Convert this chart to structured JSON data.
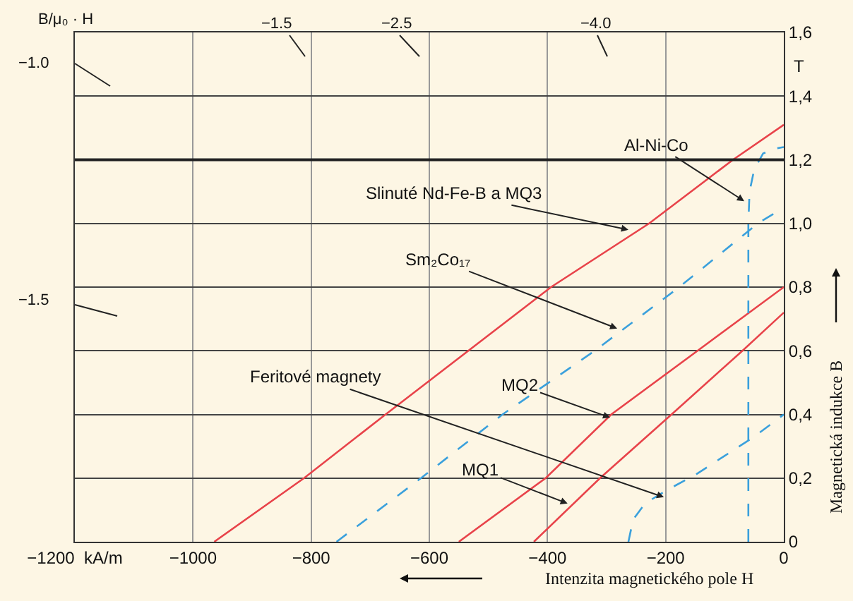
{
  "chart_data": {
    "type": "line",
    "xlabel": "Intenzita magnetického pole H",
    "ylabel": "Magnetická indukce B",
    "xlim": [
      -1200,
      0
    ],
    "xticks": [
      {
        "value": -1200,
        "label": "−1200  kA/m"
      },
      {
        "value": -1000,
        "label": "−1000"
      },
      {
        "value": -800,
        "label": "−800"
      },
      {
        "value": -600,
        "label": "−600"
      },
      {
        "value": -400,
        "label": "−400"
      },
      {
        "value": -200,
        "label": "−200"
      },
      0
    ],
    "ylim": [
      0,
      1.6
    ],
    "yticks": [
      0,
      {
        "value": 0.2,
        "label": "0,2"
      },
      {
        "value": 0.4,
        "label": "0,4"
      },
      {
        "value": 0.6,
        "label": "0,6"
      },
      {
        "value": 0.8,
        "label": "0,8"
      },
      {
        "value": 1.0,
        "label": "1,0"
      },
      {
        "value": 1.2,
        "label": "1,2"
      },
      {
        "value": 1.4,
        "label": "1,4"
      },
      {
        "value": 1.6,
        "label": "1,6"
      }
    ],
    "grid": true,
    "marker": "none",
    "ref_lines": [
      {
        "axis": "y",
        "value": 1.2,
        "color": "#222222"
      }
    ],
    "series": [
      {
        "color": "#e8434a",
        "line_style": "solid",
        "x": [
          -964,
          -812,
          -674,
          -394,
          -228,
          -86,
          0
        ],
        "values": [
          0,
          0.2,
          0.4,
          0.8,
          1.0,
          1.2,
          1.31
        ]
      },
      {
        "color": "#3aa0dc",
        "line_style": "dashed",
        "x": [
          -757,
          -614,
          -476,
          -320,
          -177,
          -44,
          0
        ],
        "values": [
          0,
          0.2,
          0.4,
          0.6,
          0.8,
          1.0,
          1.05
        ]
      },
      {
        "color": "#e8434a",
        "line_style": "solid",
        "x": [
          -550,
          -403,
          -292,
          -146,
          0
        ],
        "values": [
          0,
          0.2,
          0.4,
          0.6,
          0.8
        ]
      },
      {
        "color": "#e8434a",
        "line_style": "solid",
        "x": [
          -423,
          -311,
          -190,
          -70,
          0
        ],
        "values": [
          0,
          0.2,
          0.4,
          0.6,
          0.72
        ]
      },
      {
        "color": "#3aa0dc",
        "line_style": "dashed",
        "x": [
          -263,
          -255,
          -235,
          -200,
          -150,
          -100,
          -50,
          0
        ],
        "values": [
          0,
          0.07,
          0.12,
          0.16,
          0.21,
          0.27,
          0.33,
          0.4
        ]
      },
      {
        "color": "#3aa0dc",
        "line_style": "dashed",
        "x": [
          -60,
          -60,
          -58,
          -50,
          -35,
          -15,
          0
        ],
        "values": [
          0,
          1.0,
          1.1,
          1.17,
          1.22,
          1.235,
          1.24
        ]
      }
    ],
    "annotations": [
      {
        "text": "Al-Ni-Co",
        "x": -67,
        "y": 1.07
      },
      {
        "text": "Slinuté Nd-Fe-B a MQ3",
        "x": -263,
        "y": 0.98
      },
      {
        "text": "Sm₂Co₁₇",
        "x": -282,
        "y": 0.67
      },
      {
        "text": "Feritové magnety",
        "x": -203,
        "y": 0.14
      },
      {
        "text": "MQ2",
        "x": -294,
        "y": 0.39
      },
      {
        "text": "MQ1",
        "x": -366,
        "y": 0.12
      },
      "B/μ₀ · H",
      "−1.0",
      "−1.5",
      "−1.5",
      "−2.5",
      "−4.0",
      "T"
    ]
  }
}
